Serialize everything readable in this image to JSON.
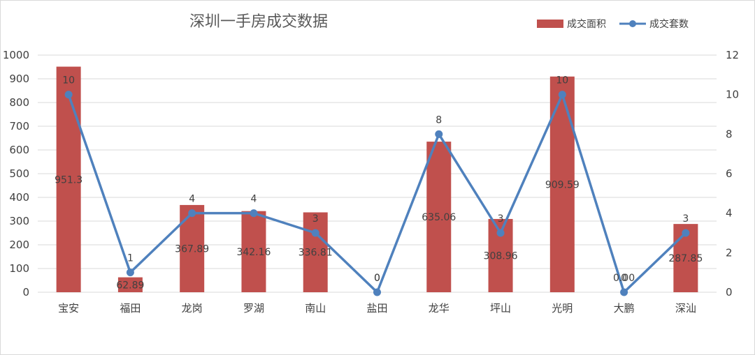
{
  "chart_data": {
    "type": "bar+line",
    "title": "深圳一手房成交数据",
    "categories": [
      "宝安",
      "福田",
      "龙岗",
      "罗湖",
      "南山",
      "盐田",
      "龙华",
      "坪山",
      "光明",
      "大鹏",
      "深汕"
    ],
    "series": [
      {
        "name": "成交面积",
        "type": "bar",
        "axis": "left",
        "color": "#c0504d",
        "values": [
          951.3,
          62.89,
          367.89,
          342.16,
          336.81,
          0,
          635.06,
          308.96,
          909.59,
          0.0,
          287.85
        ],
        "labels": [
          "951.3",
          "62.89",
          "367.89",
          "342.16",
          "336.81",
          "0",
          "635.06",
          "308.96",
          "909.59",
          "0.00",
          "287.85"
        ]
      },
      {
        "name": "成交套数",
        "type": "line",
        "axis": "right",
        "color": "#4f81bd",
        "values": [
          10,
          1,
          4,
          4,
          3,
          0,
          8,
          3,
          10,
          0,
          3
        ],
        "labels": [
          "10",
          "1",
          "4",
          "4",
          "3",
          "0",
          "8",
          "3",
          "10",
          "0",
          "3"
        ]
      }
    ],
    "y_left": {
      "min": 0,
      "max": 1000,
      "step": 100,
      "ticks": [
        "0",
        "100",
        "200",
        "300",
        "400",
        "500",
        "600",
        "700",
        "800",
        "900",
        "1000"
      ]
    },
    "y_right": {
      "min": 0,
      "max": 12,
      "step": 2,
      "ticks": [
        "0",
        "2",
        "4",
        "6",
        "8",
        "10",
        "12"
      ]
    },
    "grid": true,
    "legend": {
      "position": "top-right",
      "items": [
        "成交面积",
        "成交套数"
      ]
    }
  }
}
